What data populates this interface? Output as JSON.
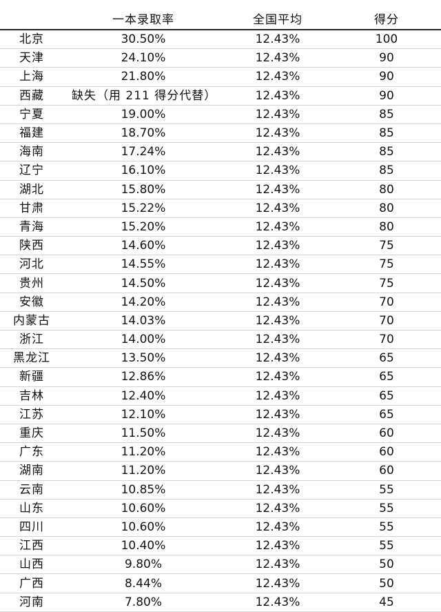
{
  "table": {
    "headers": [
      "",
      "一本录取率",
      "全国平均",
      "得分"
    ],
    "rows": [
      [
        "北京",
        "30.50%",
        "12.43%",
        "100"
      ],
      [
        "天津",
        "24.10%",
        "12.43%",
        "90"
      ],
      [
        "上海",
        "21.80%",
        "12.43%",
        "90"
      ],
      [
        "西藏",
        "缺失（用 211 得分代替）",
        "12.43%",
        "90"
      ],
      [
        "宁夏",
        "19.00%",
        "12.43%",
        "85"
      ],
      [
        "福建",
        "18.70%",
        "12.43%",
        "85"
      ],
      [
        "海南",
        "17.24%",
        "12.43%",
        "85"
      ],
      [
        "辽宁",
        "16.10%",
        "12.43%",
        "85"
      ],
      [
        "湖北",
        "15.80%",
        "12.43%",
        "80"
      ],
      [
        "甘肃",
        "15.22%",
        "12.43%",
        "80"
      ],
      [
        "青海",
        "15.20%",
        "12.43%",
        "80"
      ],
      [
        "陕西",
        "14.60%",
        "12.43%",
        "75"
      ],
      [
        "河北",
        "14.55%",
        "12.43%",
        "75"
      ],
      [
        "贵州",
        "14.50%",
        "12.43%",
        "75"
      ],
      [
        "安徽",
        "14.20%",
        "12.43%",
        "70"
      ],
      [
        "内蒙古",
        "14.03%",
        "12.43%",
        "70"
      ],
      [
        "浙江",
        "14.00%",
        "12.43%",
        "70"
      ],
      [
        "黑龙江",
        "13.50%",
        "12.43%",
        "65"
      ],
      [
        "新疆",
        "12.86%",
        "12.43%",
        "65"
      ],
      [
        "吉林",
        "12.40%",
        "12.43%",
        "65"
      ],
      [
        "江苏",
        "12.10%",
        "12.43%",
        "65"
      ],
      [
        "重庆",
        "11.50%",
        "12.43%",
        "60"
      ],
      [
        "广东",
        "11.20%",
        "12.43%",
        "60"
      ],
      [
        "湖南",
        "11.20%",
        "12.43%",
        "60"
      ],
      [
        "云南",
        "10.85%",
        "12.43%",
        "55"
      ],
      [
        "山东",
        "10.60%",
        "12.43%",
        "55"
      ],
      [
        "四川",
        "10.60%",
        "12.43%",
        "55"
      ],
      [
        "江西",
        "10.40%",
        "12.43%",
        "55"
      ],
      [
        "山西",
        "9.80%",
        "12.43%",
        "50"
      ],
      [
        "广西",
        "8.44%",
        "12.43%",
        "50"
      ],
      [
        "河南",
        "7.80%",
        "12.43%",
        "45"
      ]
    ]
  }
}
